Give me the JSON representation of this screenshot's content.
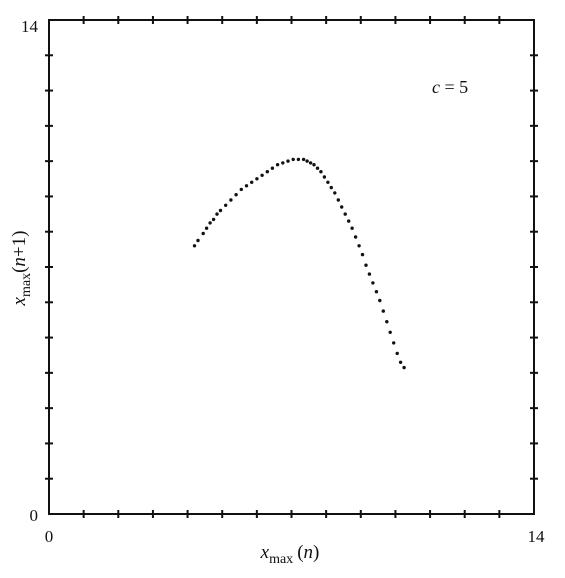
{
  "chart_data": {
    "type": "scatter",
    "title": "",
    "xlabel": {
      "base": "x",
      "subscript": "max",
      "arg_open": "(",
      "arg": "n",
      "arg_close": ")"
    },
    "ylabel": {
      "base": "x",
      "subscript": "max",
      "arg_open": "(",
      "arg": "n",
      "arg_plus": "+1",
      "arg_close": ")"
    },
    "xlim": [
      0,
      14
    ],
    "ylim": [
      0,
      14
    ],
    "x_tick_labels": [
      "0",
      "14"
    ],
    "y_tick_labels": [
      "0",
      "14"
    ],
    "minor_ticks_per_axis": 13,
    "grid": false,
    "annotation": {
      "var": "c",
      "rest": " = 5"
    },
    "colors": {
      "axis": "#111111",
      "points": "#111111",
      "background": "#ffffff"
    },
    "series": [
      {
        "values": [
          [
            4.2,
            7.6
          ],
          [
            4.3,
            7.75
          ],
          [
            4.45,
            7.95
          ],
          [
            4.55,
            8.1
          ],
          [
            4.65,
            8.25
          ],
          [
            4.75,
            8.35
          ],
          [
            4.85,
            8.5
          ],
          [
            4.95,
            8.6
          ],
          [
            5.1,
            8.75
          ],
          [
            5.25,
            8.9
          ],
          [
            5.4,
            9.05
          ],
          [
            5.55,
            9.2
          ],
          [
            5.7,
            9.3
          ],
          [
            5.85,
            9.4
          ],
          [
            6.0,
            9.5
          ],
          [
            6.15,
            9.6
          ],
          [
            6.3,
            9.7
          ],
          [
            6.45,
            9.8
          ],
          [
            6.6,
            9.9
          ],
          [
            6.75,
            9.95
          ],
          [
            6.9,
            10.0
          ],
          [
            7.05,
            10.05
          ],
          [
            7.2,
            10.05
          ],
          [
            7.35,
            10.05
          ],
          [
            7.45,
            10.0
          ],
          [
            7.55,
            9.95
          ],
          [
            7.65,
            9.9
          ],
          [
            7.75,
            9.8
          ],
          [
            7.85,
            9.7
          ],
          [
            7.95,
            9.55
          ],
          [
            8.05,
            9.4
          ],
          [
            8.15,
            9.25
          ],
          [
            8.25,
            9.1
          ],
          [
            8.35,
            8.9
          ],
          [
            8.45,
            8.7
          ],
          [
            8.55,
            8.5
          ],
          [
            8.65,
            8.3
          ],
          [
            8.75,
            8.1
          ],
          [
            8.85,
            7.85
          ],
          [
            8.95,
            7.6
          ],
          [
            9.05,
            7.35
          ],
          [
            9.15,
            7.05
          ],
          [
            9.25,
            6.8
          ],
          [
            9.35,
            6.55
          ],
          [
            9.45,
            6.3
          ],
          [
            9.55,
            6.05
          ],
          [
            9.65,
            5.75
          ],
          [
            9.75,
            5.45
          ],
          [
            9.85,
            5.15
          ],
          [
            9.95,
            4.85
          ],
          [
            10.05,
            4.55
          ],
          [
            10.15,
            4.3
          ],
          [
            10.25,
            4.15
          ]
        ]
      }
    ]
  }
}
